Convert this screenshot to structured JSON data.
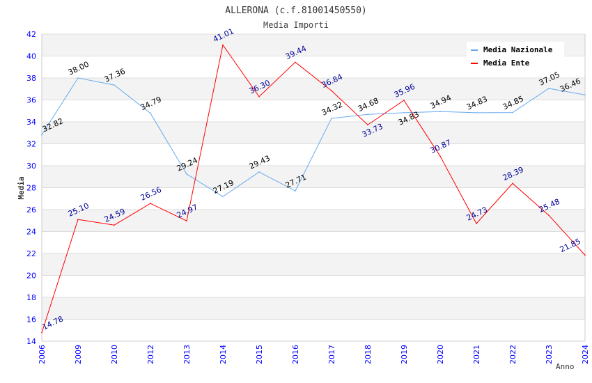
{
  "chart_data": {
    "type": "line",
    "title": "ALLERONA (c.f.81001450550)",
    "subtitle": "Media Importi",
    "xlabel": "Anno",
    "ylabel": "Media",
    "ylim": [
      14,
      42
    ],
    "yticks": [
      "14",
      "16",
      "18",
      "20",
      "22",
      "24",
      "26",
      "28",
      "30",
      "32",
      "34",
      "36",
      "38",
      "40",
      "42"
    ],
    "grid": true,
    "legend_position": "top-right",
    "categories": [
      "2006",
      "2009",
      "2010",
      "2012",
      "2013",
      "2014",
      "2015",
      "2016",
      "2017",
      "2018",
      "2019",
      "2020",
      "2021",
      "2022",
      "2023",
      "2024"
    ],
    "series": [
      {
        "name": "Media Nazionale",
        "color": "#66aaee",
        "label_color": "#000000",
        "values": [
          32.82,
          38.0,
          37.36,
          34.79,
          29.24,
          27.19,
          29.43,
          27.71,
          34.32,
          34.68,
          34.83,
          34.94,
          34.83,
          34.85,
          37.05,
          36.46
        ],
        "labels": [
          "32.82",
          "38.00",
          "37.36",
          "34.79",
          "29.24",
          "27.19",
          "29.43",
          "27.71",
          "34.32",
          "34.68",
          "34.83",
          "34.94",
          "34.83",
          "34.85",
          "37.05",
          "36.46"
        ]
      },
      {
        "name": "Media Ente",
        "color": "#ff0000",
        "label_color": "#000099",
        "values": [
          14.78,
          25.1,
          24.59,
          26.56,
          24.97,
          41.01,
          36.3,
          39.44,
          36.84,
          33.73,
          35.96,
          30.87,
          24.73,
          28.39,
          25.48,
          21.85
        ],
        "labels": [
          "14.78",
          "25.10",
          "24.59",
          "26.56",
          "24.97",
          "41.01",
          "36.30",
          "39.44",
          "36.84",
          "33.73",
          "35.96",
          "30.87",
          "24.73",
          "28.39",
          "25.48",
          "21.85"
        ]
      }
    ]
  }
}
